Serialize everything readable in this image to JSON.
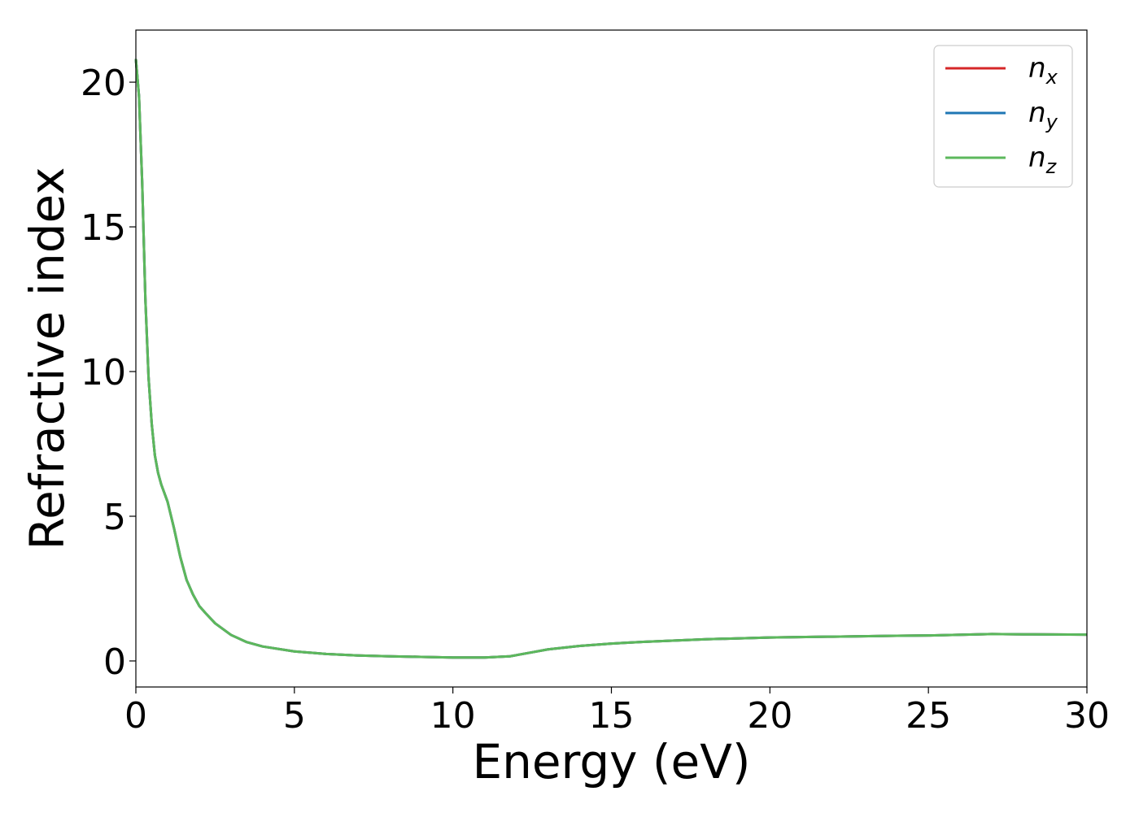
{
  "chart_data": {
    "type": "line",
    "title": "",
    "xlabel": "Energy (eV)",
    "ylabel": "Refractive index",
    "xlim": [
      0,
      30
    ],
    "ylim": [
      -0.9,
      21.8
    ],
    "xticks": [
      0,
      5,
      10,
      15,
      20,
      25,
      30
    ],
    "yticks": [
      0,
      5,
      10,
      15,
      20
    ],
    "grid": false,
    "legend_position": "top-right",
    "series": [
      {
        "name": "n",
        "subscript": "x",
        "color": "#d62728",
        "x": [
          0.0,
          0.1,
          0.2,
          0.3,
          0.4,
          0.5,
          0.6,
          0.7,
          0.8,
          0.9,
          1.0,
          1.2,
          1.4,
          1.6,
          1.8,
          2.0,
          2.2,
          2.5,
          3.0,
          3.5,
          4.0,
          5.0,
          6.0,
          7.0,
          8.0,
          9.0,
          10.0,
          11.0,
          11.8,
          12.5,
          13.0,
          14.0,
          15.0,
          16.0,
          18.0,
          20.0,
          22.0,
          24.0,
          25.0,
          27.0,
          28.0,
          30.0
        ],
        "y": [
          20.8,
          19.5,
          16.5,
          12.5,
          9.8,
          8.2,
          7.1,
          6.5,
          6.1,
          5.8,
          5.5,
          4.6,
          3.6,
          2.8,
          2.3,
          1.9,
          1.65,
          1.3,
          0.9,
          0.65,
          0.5,
          0.33,
          0.24,
          0.19,
          0.16,
          0.14,
          0.12,
          0.12,
          0.16,
          0.3,
          0.4,
          0.52,
          0.6,
          0.66,
          0.75,
          0.81,
          0.84,
          0.87,
          0.88,
          0.93,
          0.92,
          0.91
        ]
      },
      {
        "name": "n",
        "subscript": "y",
        "color": "#1f77b4",
        "x": [
          0.0,
          0.1,
          0.2,
          0.3,
          0.4,
          0.5,
          0.6,
          0.7,
          0.8,
          0.9,
          1.0,
          1.2,
          1.4,
          1.6,
          1.8,
          2.0,
          2.2,
          2.5,
          3.0,
          3.5,
          4.0,
          5.0,
          6.0,
          7.0,
          8.0,
          9.0,
          10.0,
          11.0,
          11.8,
          12.5,
          13.0,
          14.0,
          15.0,
          16.0,
          18.0,
          20.0,
          22.0,
          24.0,
          25.0,
          27.0,
          28.0,
          30.0
        ],
        "y": [
          20.8,
          19.5,
          16.5,
          12.5,
          9.8,
          8.2,
          7.1,
          6.5,
          6.1,
          5.8,
          5.5,
          4.6,
          3.6,
          2.8,
          2.3,
          1.9,
          1.65,
          1.3,
          0.9,
          0.65,
          0.5,
          0.33,
          0.24,
          0.19,
          0.16,
          0.14,
          0.12,
          0.12,
          0.16,
          0.3,
          0.4,
          0.52,
          0.6,
          0.66,
          0.75,
          0.81,
          0.84,
          0.87,
          0.88,
          0.93,
          0.92,
          0.91
        ]
      },
      {
        "name": "n",
        "subscript": "z",
        "color": "#5cb85c",
        "x": [
          0.0,
          0.1,
          0.2,
          0.3,
          0.4,
          0.5,
          0.6,
          0.7,
          0.8,
          0.9,
          1.0,
          1.2,
          1.4,
          1.6,
          1.8,
          2.0,
          2.2,
          2.5,
          3.0,
          3.5,
          4.0,
          5.0,
          6.0,
          7.0,
          8.0,
          9.0,
          10.0,
          11.0,
          11.8,
          12.5,
          13.0,
          14.0,
          15.0,
          16.0,
          18.0,
          20.0,
          22.0,
          24.0,
          25.0,
          27.0,
          28.0,
          30.0
        ],
        "y": [
          20.8,
          19.5,
          16.5,
          12.5,
          9.8,
          8.2,
          7.1,
          6.5,
          6.1,
          5.8,
          5.5,
          4.6,
          3.6,
          2.8,
          2.3,
          1.9,
          1.65,
          1.3,
          0.9,
          0.65,
          0.5,
          0.33,
          0.24,
          0.19,
          0.16,
          0.14,
          0.12,
          0.12,
          0.16,
          0.3,
          0.4,
          0.52,
          0.6,
          0.66,
          0.75,
          0.81,
          0.84,
          0.87,
          0.88,
          0.93,
          0.92,
          0.91
        ]
      }
    ]
  }
}
